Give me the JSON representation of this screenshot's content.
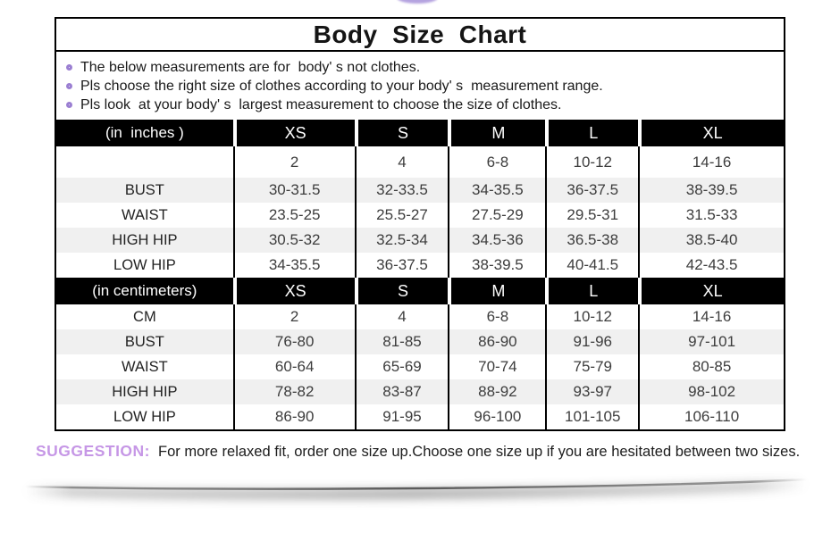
{
  "page": {
    "title": "Body  Size  Chart",
    "notes": [
      "The below measurements are for  body' s not clothes.",
      "Pls choose the right size of clothes according to your body' s  measurement range.",
      "Pls look  at your body' s  largest measurement to choose the size of clothes."
    ],
    "suggestion_label": "SUGGESTION:",
    "suggestion_text": "For more relaxed fit, order one size up.Choose one size up if you are hesitated between two sizes."
  },
  "icons": {
    "bullet": "ring-icon"
  },
  "colors": {
    "bullet_purple": "#9b7fd2",
    "suggestion_purple": "#c697e6",
    "top_decoration_purple": "#a893da",
    "header_bg": "#000000",
    "header_text": "#ffffff",
    "alt_row_bg": "#f0f0f0",
    "border_black": "#000000"
  },
  "chart_data": {
    "type": "table",
    "title": "Body Size Chart",
    "tables": [
      {
        "unit_label": "(in  inches )",
        "columns": [
          "XS",
          "S",
          "M",
          "L",
          "XL"
        ],
        "rows": [
          {
            "label": "",
            "values": [
              "2",
              "4",
              "6-8",
              "10-12",
              "14-16"
            ]
          },
          {
            "label": "BUST",
            "values": [
              "30-31.5",
              "32-33.5",
              "34-35.5",
              "36-37.5",
              "38-39.5"
            ]
          },
          {
            "label": "WAIST",
            "values": [
              "23.5-25",
              "25.5-27",
              "27.5-29",
              "29.5-31",
              "31.5-33"
            ]
          },
          {
            "label": "HIGH HIP",
            "values": [
              "30.5-32",
              "32.5-34",
              "34.5-36",
              "36.5-38",
              "38.5-40"
            ]
          },
          {
            "label": "LOW HIP",
            "values": [
              "34-35.5",
              "36-37.5",
              "38-39.5",
              "40-41.5",
              "42-43.5"
            ]
          }
        ]
      },
      {
        "unit_label": "(in centimeters)",
        "columns": [
          "XS",
          "S",
          "M",
          "L",
          "XL"
        ],
        "rows": [
          {
            "label": "CM",
            "values": [
              "2",
              "4",
              "6-8",
              "10-12",
              "14-16"
            ]
          },
          {
            "label": "BUST",
            "values": [
              "76-80",
              "81-85",
              "86-90",
              "91-96",
              "97-101"
            ]
          },
          {
            "label": "WAIST",
            "values": [
              "60-64",
              "65-69",
              "70-74",
              "75-79",
              "80-85"
            ]
          },
          {
            "label": "HIGH HIP",
            "values": [
              "78-82",
              "83-87",
              "88-92",
              "93-97",
              "98-102"
            ]
          },
          {
            "label": "LOW HIP",
            "values": [
              "86-90",
              "91-95",
              "96-100",
              "101-105",
              "106-110"
            ]
          }
        ]
      }
    ]
  }
}
